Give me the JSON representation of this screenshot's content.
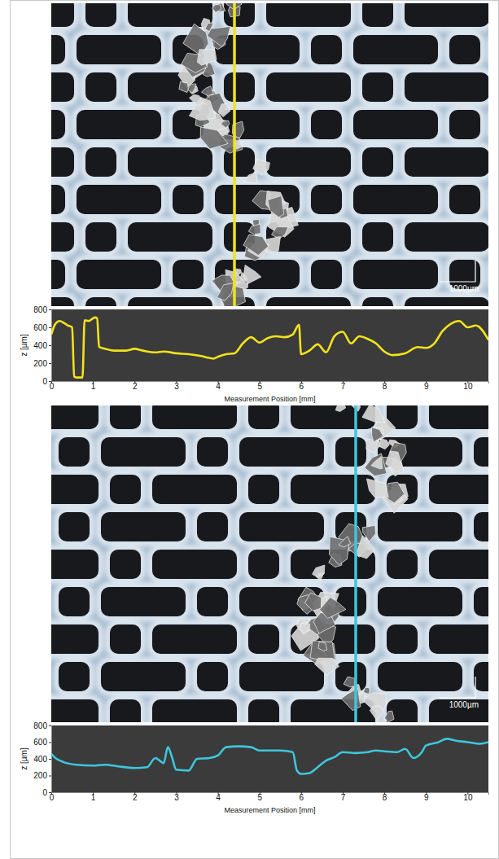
{
  "chart_data": [
    {
      "type": "line",
      "color": "#f2e21c",
      "x_label": "Measurement Position [mm]",
      "y_label": "z [µm]",
      "annotations": [
        "1000µm"
      ],
      "xlim": [
        0,
        10.5
      ],
      "ylim": [
        0,
        800
      ],
      "xticks": [
        0,
        1,
        2,
        3,
        4,
        5,
        6,
        7,
        8,
        9,
        10
      ],
      "yticks": [
        0,
        200,
        400,
        600,
        800
      ],
      "x": [
        0,
        0.1,
        0.2,
        0.3,
        0.4,
        0.5,
        0.55,
        0.6,
        0.7,
        0.75,
        0.8,
        0.9,
        1.0,
        1.05,
        1.1,
        1.15,
        1.3,
        1.5,
        1.8,
        2.0,
        2.2,
        2.5,
        2.7,
        3.0,
        3.3,
        3.6,
        3.9,
        4.0,
        4.2,
        4.4,
        4.6,
        4.8,
        5.0,
        5.2,
        5.4,
        5.6,
        5.8,
        5.95,
        6.0,
        6.2,
        6.4,
        6.6,
        6.8,
        7.0,
        7.2,
        7.4,
        7.6,
        7.8,
        8.0,
        8.2,
        8.5,
        8.8,
        9.0,
        9.2,
        9.4,
        9.6,
        9.8,
        10.0,
        10.2,
        10.5
      ],
      "values": [
        520,
        640,
        670,
        650,
        620,
        600,
        50,
        40,
        40,
        40,
        680,
        670,
        700,
        710,
        700,
        380,
        360,
        340,
        340,
        360,
        340,
        320,
        330,
        310,
        300,
        280,
        250,
        270,
        300,
        310,
        420,
        490,
        430,
        480,
        500,
        490,
        520,
        630,
        300,
        340,
        410,
        320,
        500,
        550,
        420,
        500,
        470,
        420,
        330,
        290,
        310,
        380,
        370,
        420,
        560,
        640,
        670,
        600,
        620,
        460
      ]
    },
    {
      "type": "line",
      "color": "#3ec6dc",
      "x_label": "Measurement Position [mm]",
      "y_label": "z [µm]",
      "annotations": [
        "1000µm"
      ],
      "xlim": [
        0,
        10.5
      ],
      "ylim": [
        0,
        800
      ],
      "xticks": [
        0,
        1,
        2,
        3,
        4,
        5,
        6,
        7,
        8,
        9,
        10
      ],
      "yticks": [
        0,
        200,
        400,
        600,
        800
      ],
      "x": [
        0,
        0.1,
        0.3,
        0.6,
        1.0,
        1.3,
        1.6,
        2.0,
        2.3,
        2.5,
        2.7,
        2.8,
        2.9,
        3.0,
        3.3,
        3.5,
        3.8,
        4.0,
        4.2,
        4.5,
        4.8,
        5.0,
        5.5,
        5.8,
        5.9,
        6.0,
        6.2,
        6.4,
        6.6,
        6.8,
        7.0,
        7.3,
        7.6,
        7.8,
        8.0,
        8.3,
        8.5,
        8.7,
        8.9,
        9.0,
        9.3,
        9.5,
        9.7,
        10.0,
        10.3,
        10.5
      ],
      "values": [
        460,
        410,
        360,
        330,
        320,
        330,
        310,
        290,
        300,
        410,
        350,
        540,
        420,
        270,
        260,
        400,
        410,
        440,
        540,
        550,
        540,
        500,
        500,
        480,
        260,
        220,
        230,
        300,
        380,
        420,
        480,
        470,
        480,
        500,
        490,
        480,
        520,
        410,
        480,
        560,
        600,
        640,
        620,
        600,
        580,
        600
      ]
    }
  ]
}
